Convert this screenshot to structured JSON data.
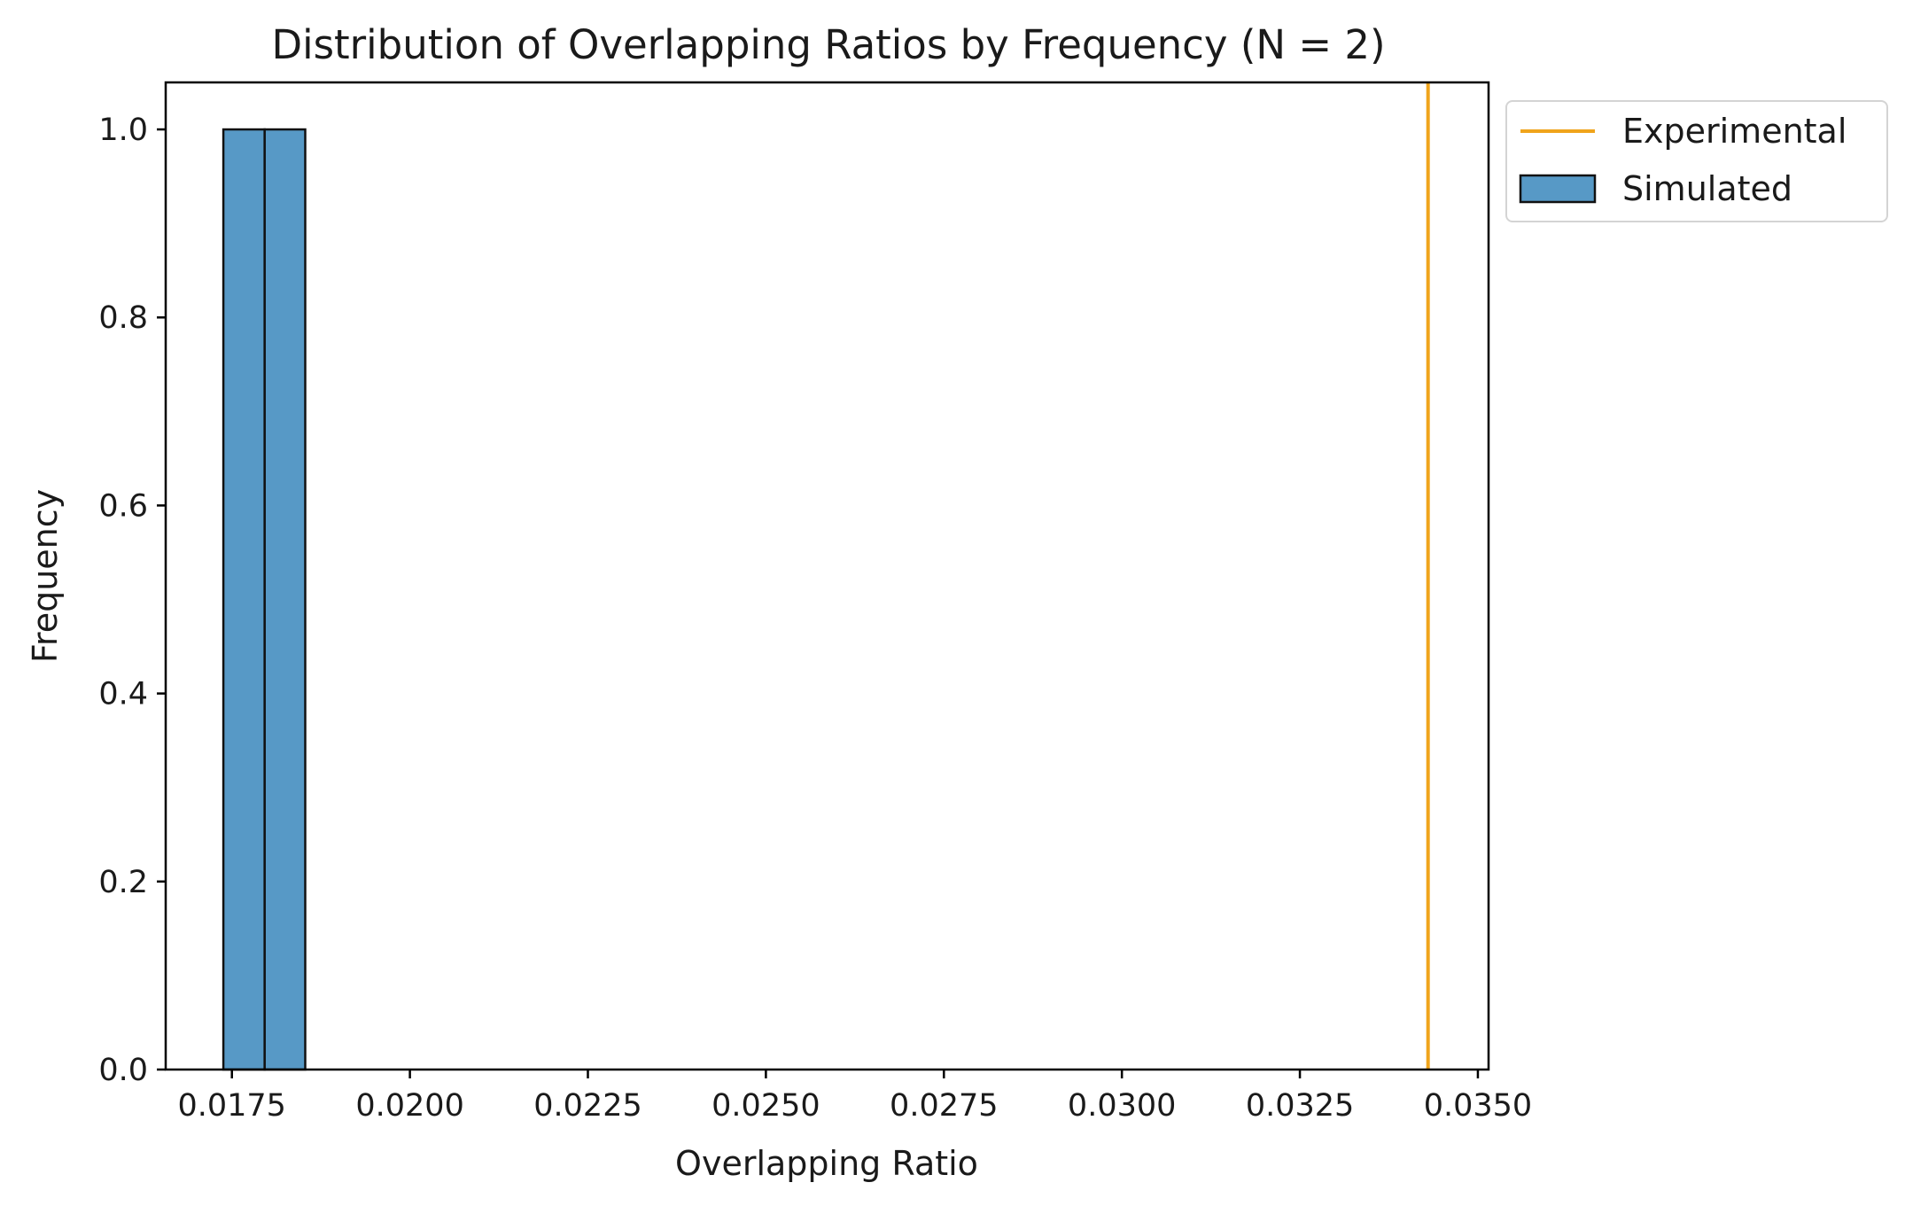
{
  "chart_data": {
    "type": "bar",
    "title": "Distribution of Overlapping Ratios by Frequency (N = 2)",
    "xlabel": "Overlapping Ratio",
    "ylabel": "Frequency",
    "xlim": [
      0.01657,
      0.03515
    ],
    "ylim": [
      0.0,
      1.05
    ],
    "x_ticks": [
      0.0175,
      0.02,
      0.0225,
      0.025,
      0.0275,
      0.03,
      0.0325,
      0.035
    ],
    "x_tick_labels": [
      "0.0175",
      "0.0200",
      "0.0225",
      "0.0250",
      "0.0275",
      "0.0300",
      "0.0325",
      "0.0350"
    ],
    "y_ticks": [
      0.0,
      0.2,
      0.4,
      0.6,
      0.8,
      1.0
    ],
    "y_tick_labels": [
      "0.0",
      "0.2",
      "0.4",
      "0.6",
      "0.8",
      "1.0"
    ],
    "grid": false,
    "legend_position": "upper-right-outside",
    "series": [
      {
        "name": "Simulated",
        "kind": "histogram",
        "color": "#5799c6",
        "edge_color": "#111111",
        "bins": [
          {
            "x0": 0.01738,
            "x1": 0.01796,
            "value": 1.0
          },
          {
            "x0": 0.01796,
            "x1": 0.01853,
            "value": 1.0
          }
        ]
      },
      {
        "name": "Experimental",
        "kind": "vertical-line",
        "color": "#f0a41c",
        "x": 0.0343
      }
    ]
  }
}
